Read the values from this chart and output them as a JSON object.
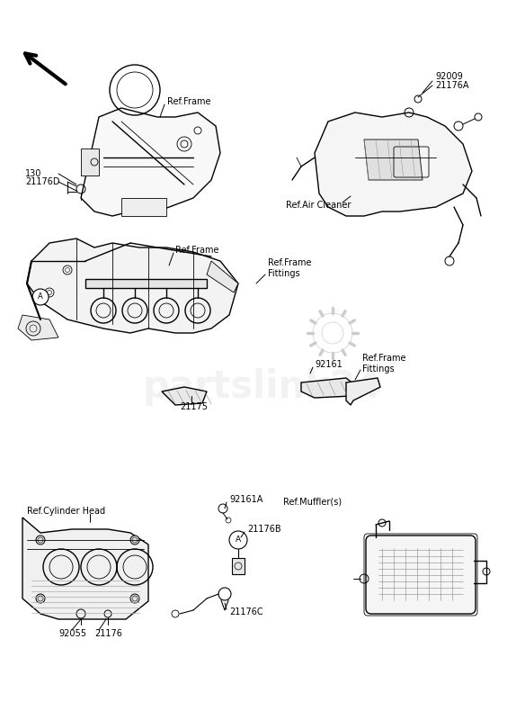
{
  "bg_color": "#ffffff",
  "line_color": "#000000",
  "watermark_text": "partslink24",
  "watermark_color": "#cccccc",
  "watermark_alpha": 0.25,
  "labels": {
    "ref_frame_top": "Ref.Frame",
    "ref_air_cleaner": "Ref.Air Cleaner",
    "ref_frame_mid": "Ref.Frame",
    "ref_frame_fittings1": "Ref.Frame\nFittings",
    "ref_frame_fittings2": "Ref.Frame\nFittings",
    "ref_cylinder_head": "Ref.Cylinder Head",
    "ref_muffler": "Ref.Muffler(s)",
    "p130": "130",
    "p21176D": "21176D",
    "p92009": "92009",
    "p21176A": "21176A",
    "p92161": "92161",
    "p21175": "21175",
    "p92161A": "92161A",
    "p21176B": "21176B",
    "p21176C": "21176C",
    "p92055": "92055",
    "p21176": "21176"
  },
  "font_size_label": 7,
  "font_size_ref": 7
}
